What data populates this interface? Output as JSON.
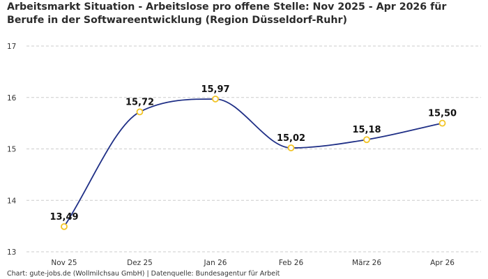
{
  "chart_data": {
    "type": "line",
    "title": "Arbeitsmarkt Situation - Arbeitslose pro offene Stelle: Nov 2025 - Apr 2026 für Berufe in der Softwareentwicklung (Region Düsseldorf-Ruhr)",
    "xlabel": "",
    "ylabel": "",
    "categories": [
      "Nov 25",
      "Dez 25",
      "Jan 26",
      "Feb 26",
      "März 26",
      "Apr 26"
    ],
    "values": [
      13.49,
      15.72,
      15.97,
      15.02,
      15.18,
      15.5
    ],
    "data_labels": [
      "13,49",
      "15,72",
      "15,97",
      "15,02",
      "15,18",
      "15,50"
    ],
    "yticks": [
      13,
      14,
      15,
      16,
      17
    ],
    "ylim": [
      13,
      17
    ],
    "grid": true,
    "legend": "none",
    "line_color": "#1f2f86",
    "marker_color": "#f2c425",
    "grid_color": "#cccccc"
  },
  "footer": "Chart: gute-jobs.de (Wollmilchsau GmbH) | Datenquelle: Bundesagentur für Arbeit"
}
